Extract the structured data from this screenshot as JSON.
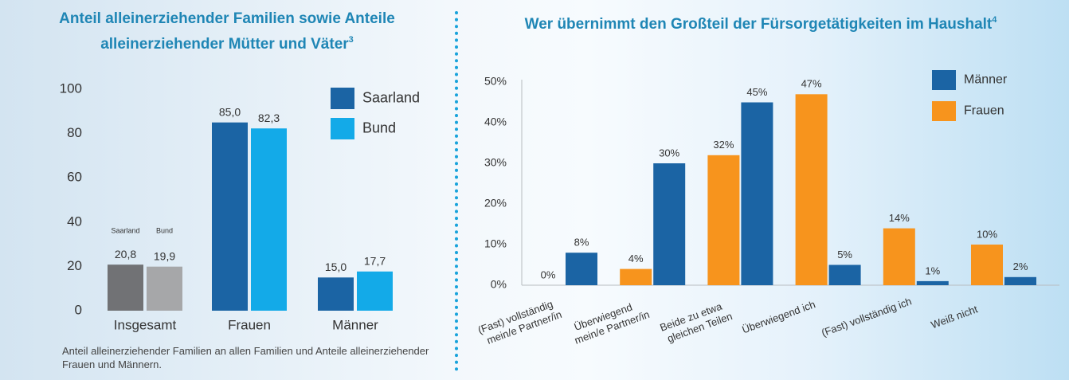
{
  "chart_data": [
    {
      "type": "bar",
      "title": "Anteil alleinerziehender Familien sowie Anteile alleinerziehender Mütter und Väter",
      "title_note": "3",
      "categories": [
        "Insgesamt",
        "Frauen",
        "Männer"
      ],
      "series": [
        {
          "name": "Saarland",
          "color": "#1b64a4",
          "colors": [
            "#717275",
            "#1b64a4",
            "#1b64a4"
          ],
          "values": [
            20.8,
            85.0,
            15.0
          ],
          "value_labels": [
            "20,8",
            "85,0",
            "15,0"
          ]
        },
        {
          "name": "Bund",
          "color": "#13aae8",
          "colors": [
            "#a6a7a9",
            "#13aae8",
            "#13aae8"
          ],
          "values": [
            19.9,
            82.3,
            17.7
          ],
          "value_labels": [
            "19,9",
            "82,3",
            "17,7"
          ]
        }
      ],
      "annotations": [
        "Saarland",
        "Bund"
      ],
      "ylim": [
        0,
        100
      ],
      "yticks": [
        0,
        20,
        40,
        60,
        80,
        100
      ],
      "legend": "top-right",
      "note": "Anteil alleinerziehender Familien an allen Familien und Anteile alleinerziehender Frauen und Männern."
    },
    {
      "type": "bar",
      "title": "Wer übernimmt den Großteil der Fürsorgetätigkeiten im Haushalt",
      "title_note": "4",
      "categories": [
        [
          "(Fast) vollständig",
          "mein/e Partner/in"
        ],
        [
          "Überwiegend",
          "mein/e Partner/in"
        ],
        [
          "Beide zu etwa",
          "gleichen Teilen"
        ],
        [
          "Überwiegend ich"
        ],
        [
          "(Fast) vollständig ich"
        ],
        [
          "Weiß nicht"
        ]
      ],
      "series": [
        {
          "name": "Männer",
          "color": "#1b64a4",
          "values": [
            8,
            30,
            45,
            5,
            1,
            2
          ],
          "value_labels": [
            "8%",
            "30%",
            "45%",
            "5%",
            "1%",
            "2%"
          ]
        },
        {
          "name": "Frauen",
          "color": "#f7941d",
          "values": [
            0,
            4,
            32,
            47,
            14,
            10
          ],
          "value_labels": [
            "0%",
            "4%",
            "32%",
            "47%",
            "14%",
            "10%"
          ]
        }
      ],
      "ylim": [
        0,
        50
      ],
      "yticks": [
        {
          "value": 0,
          "label": "0%"
        },
        {
          "value": 10,
          "label": "10%"
        },
        {
          "value": 20,
          "label": "20%"
        },
        {
          "value": 30,
          "label": "30%"
        },
        {
          "value": 40,
          "label": "40%"
        },
        {
          "value": 50,
          "label": "50%"
        }
      ],
      "legend": "top-right"
    }
  ]
}
